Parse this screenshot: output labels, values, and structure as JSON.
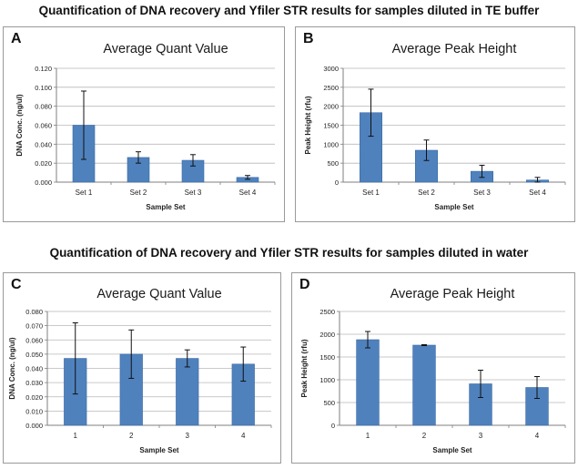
{
  "headings": {
    "top": "Quantification of DNA recovery and Yfiler STR results for samples diluted in TE buffer",
    "bottom": "Quantification of DNA recovery and Yfiler STR results for samples diluted in water"
  },
  "colors": {
    "bar": "#4f81bd",
    "bar_edge": "#3a6aa3",
    "grid": "#b8b8b8",
    "axis": "#7f7f7f",
    "text": "#222222"
  },
  "chart_data": [
    {
      "letter": "A",
      "type": "bar",
      "title": "Average Quant Value",
      "xlabel": "Sample Set",
      "ylabel": "DNA Conc. (ng/ul)",
      "categories": [
        "Set 1",
        "Set 2",
        "Set 3",
        "Set 4"
      ],
      "values": [
        0.06,
        0.026,
        0.023,
        0.005
      ],
      "errors": [
        0.036,
        0.006,
        0.006,
        0.002
      ],
      "ylim": [
        0,
        0.12
      ],
      "yticks": [
        "0.000",
        "0.020",
        "0.040",
        "0.060",
        "0.080",
        "0.100",
        "0.120"
      ],
      "grid": true
    },
    {
      "letter": "B",
      "type": "bar",
      "title": "Average Peak Height",
      "xlabel": "Sample Set",
      "ylabel": "Peak Height (rfu)",
      "categories": [
        "Set 1",
        "Set 2",
        "Set 3",
        "Set 4"
      ],
      "values": [
        1830,
        840,
        285,
        55
      ],
      "errors": [
        620,
        270,
        160,
        70
      ],
      "ylim": [
        0,
        3000
      ],
      "yticks": [
        "0",
        "500",
        "1000",
        "1500",
        "2000",
        "2500",
        "3000"
      ],
      "grid": true
    },
    {
      "letter": "C",
      "type": "bar",
      "title": "Average Quant Value",
      "xlabel": "Sample Set",
      "ylabel": "DNA Conc. (ng/ul)",
      "categories": [
        "1",
        "2",
        "3",
        "4"
      ],
      "values": [
        0.047,
        0.05,
        0.047,
        0.043
      ],
      "errors": [
        0.025,
        0.017,
        0.006,
        0.012
      ],
      "ylim": [
        0,
        0.08
      ],
      "yticks": [
        "0.000",
        "0.010",
        "0.020",
        "0.030",
        "0.040",
        "0.050",
        "0.060",
        "0.070",
        "0.080"
      ],
      "grid": true
    },
    {
      "letter": "D",
      "type": "bar",
      "title": "Average Peak Height",
      "xlabel": "Sample Set",
      "ylabel": "Peak Height (rfu)",
      "categories": [
        "1",
        "2",
        "3",
        "4"
      ],
      "values": [
        1880,
        1760,
        910,
        830
      ],
      "errors": [
        180,
        10,
        300,
        240
      ],
      "ylim": [
        0,
        2500
      ],
      "yticks": [
        "0",
        "500",
        "1000",
        "1500",
        "2000",
        "2500"
      ],
      "grid": true
    }
  ]
}
